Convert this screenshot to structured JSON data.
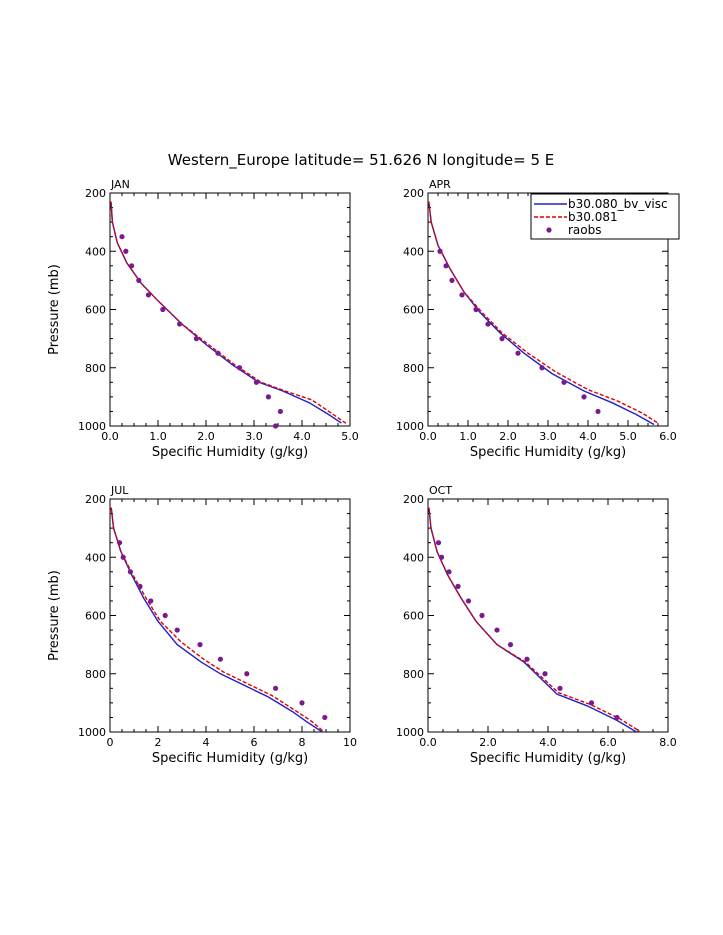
{
  "figure": {
    "title": "Western_Europe   latitude= 51.626 N longitude= 5 E"
  },
  "colors": {
    "model_a": "#2020c8",
    "model_b": "#e00000",
    "obs": "#7a1a8c"
  },
  "legend": {
    "placement": "top-right of APR panel",
    "entries": [
      {
        "name": "b30.080_bv_visc",
        "style": "solid-line"
      },
      {
        "name": "b30.081",
        "style": "dashed-line"
      },
      {
        "name": "raobs",
        "style": "dot"
      }
    ]
  },
  "chart_data": [
    {
      "type": "line",
      "panel_title": "JAN",
      "xlabel": "Specific Humidity (g/kg)",
      "ylabel": "Pressure (mb)",
      "xlim": [
        0,
        5
      ],
      "ylim": [
        1000,
        200
      ],
      "y_inverted": true,
      "xticks": [
        "0.0",
        "1.0",
        "2.0",
        "3.0",
        "4.0",
        "5.0"
      ],
      "yticks": [
        "200",
        "400",
        "600",
        "800",
        "1000"
      ],
      "series": [
        {
          "name": "b30.080_bv_visc",
          "style": "solid",
          "points": [
            [
              0.02,
              230
            ],
            [
              0.05,
              300
            ],
            [
              0.15,
              370
            ],
            [
              0.35,
              440
            ],
            [
              0.65,
              510
            ],
            [
              1.0,
              570
            ],
            [
              1.5,
              650
            ],
            [
              2.0,
              720
            ],
            [
              2.55,
              790
            ],
            [
              3.1,
              850
            ],
            [
              3.6,
              880
            ],
            [
              4.15,
              920
            ],
            [
              4.55,
              960
            ],
            [
              4.82,
              990
            ]
          ]
        },
        {
          "name": "b30.081",
          "style": "dashed",
          "points": [
            [
              0.02,
              230
            ],
            [
              0.05,
              300
            ],
            [
              0.15,
              370
            ],
            [
              0.35,
              440
            ],
            [
              0.65,
              510
            ],
            [
              1.0,
              570
            ],
            [
              1.5,
              650
            ],
            [
              2.05,
              720
            ],
            [
              2.6,
              790
            ],
            [
              3.15,
              850
            ],
            [
              3.65,
              880
            ],
            [
              4.2,
              910
            ],
            [
              4.65,
              960
            ],
            [
              4.95,
              995
            ]
          ]
        },
        {
          "name": "raobs",
          "style": "dot",
          "points": [
            [
              0.25,
              350
            ],
            [
              0.33,
              400
            ],
            [
              0.45,
              450
            ],
            [
              0.6,
              500
            ],
            [
              0.8,
              550
            ],
            [
              1.1,
              600
            ],
            [
              1.45,
              650
            ],
            [
              1.8,
              700
            ],
            [
              2.25,
              750
            ],
            [
              2.7,
              800
            ],
            [
              3.05,
              850
            ],
            [
              3.3,
              900
            ],
            [
              3.55,
              950
            ],
            [
              3.45,
              1000
            ]
          ]
        }
      ]
    },
    {
      "type": "line",
      "panel_title": "APR",
      "xlabel": "Specific Humidity (g/kg)",
      "ylabel": "",
      "xlim": [
        0,
        6
      ],
      "ylim": [
        1000,
        200
      ],
      "y_inverted": true,
      "xticks": [
        "0.0",
        "1.0",
        "2.0",
        "3.0",
        "4.0",
        "5.0",
        "6.0"
      ],
      "yticks": [
        "200",
        "400",
        "600",
        "800",
        "1000"
      ],
      "series": [
        {
          "name": "b30.080_bv_visc",
          "style": "solid",
          "points": [
            [
              0.02,
              230
            ],
            [
              0.08,
              300
            ],
            [
              0.25,
              380
            ],
            [
              0.55,
              460
            ],
            [
              0.9,
              540
            ],
            [
              1.3,
              610
            ],
            [
              1.8,
              680
            ],
            [
              2.4,
              750
            ],
            [
              3.1,
              820
            ],
            [
              3.9,
              880
            ],
            [
              4.6,
              920
            ],
            [
              5.2,
              960
            ],
            [
              5.65,
              995
            ]
          ]
        },
        {
          "name": "b30.081",
          "style": "dashed",
          "points": [
            [
              0.02,
              230
            ],
            [
              0.08,
              300
            ],
            [
              0.25,
              380
            ],
            [
              0.55,
              460
            ],
            [
              0.9,
              540
            ],
            [
              1.35,
              610
            ],
            [
              1.85,
              680
            ],
            [
              2.5,
              750
            ],
            [
              3.2,
              815
            ],
            [
              4.0,
              875
            ],
            [
              4.75,
              915
            ],
            [
              5.35,
              955
            ],
            [
              5.75,
              990
            ]
          ]
        },
        {
          "name": "raobs",
          "style": "dot",
          "points": [
            [
              0.3,
              400
            ],
            [
              0.45,
              450
            ],
            [
              0.6,
              500
            ],
            [
              0.85,
              550
            ],
            [
              1.2,
              600
            ],
            [
              1.5,
              650
            ],
            [
              1.85,
              700
            ],
            [
              2.25,
              750
            ],
            [
              2.85,
              800
            ],
            [
              3.4,
              850
            ],
            [
              3.9,
              900
            ],
            [
              4.25,
              950
            ]
          ]
        }
      ]
    },
    {
      "type": "line",
      "panel_title": "JUL",
      "xlabel": "Specific Humidity (g/kg)",
      "ylabel": "Pressure (mb)",
      "xlim": [
        0,
        10
      ],
      "ylim": [
        1000,
        200
      ],
      "y_inverted": true,
      "xticks": [
        "0",
        "2",
        "4",
        "6",
        "8",
        "10"
      ],
      "yticks": [
        "200",
        "400",
        "600",
        "800",
        "1000"
      ],
      "series": [
        {
          "name": "b30.080_bv_visc",
          "style": "solid",
          "points": [
            [
              0.05,
              230
            ],
            [
              0.15,
              300
            ],
            [
              0.45,
              380
            ],
            [
              0.9,
              460
            ],
            [
              1.4,
              540
            ],
            [
              2.0,
              620
            ],
            [
              2.8,
              700
            ],
            [
              3.8,
              760
            ],
            [
              4.6,
              800
            ],
            [
              5.6,
              840
            ],
            [
              6.6,
              880
            ],
            [
              7.6,
              930
            ],
            [
              8.2,
              965
            ],
            [
              8.85,
              1000
            ]
          ]
        },
        {
          "name": "b30.081",
          "style": "dashed",
          "points": [
            [
              0.05,
              230
            ],
            [
              0.15,
              300
            ],
            [
              0.45,
              380
            ],
            [
              0.95,
              460
            ],
            [
              1.5,
              540
            ],
            [
              2.1,
              620
            ],
            [
              2.95,
              690
            ],
            [
              3.9,
              750
            ],
            [
              4.75,
              795
            ],
            [
              5.75,
              835
            ],
            [
              6.75,
              875
            ],
            [
              7.7,
              925
            ],
            [
              8.35,
              960
            ],
            [
              8.9,
              998
            ]
          ]
        },
        {
          "name": "raobs",
          "style": "dot",
          "points": [
            [
              0.4,
              350
            ],
            [
              0.55,
              400
            ],
            [
              0.85,
              450
            ],
            [
              1.25,
              500
            ],
            [
              1.7,
              550
            ],
            [
              2.3,
              600
            ],
            [
              2.8,
              650
            ],
            [
              3.75,
              700
            ],
            [
              4.6,
              750
            ],
            [
              5.7,
              800
            ],
            [
              6.9,
              850
            ],
            [
              8.0,
              900
            ],
            [
              8.95,
              950
            ]
          ]
        }
      ]
    },
    {
      "type": "line",
      "panel_title": "OCT",
      "xlabel": "Specific Humidity (g/kg)",
      "ylabel": "",
      "xlim": [
        0,
        8
      ],
      "ylim": [
        1000,
        200
      ],
      "y_inverted": true,
      "xticks": [
        "0.0",
        "2.0",
        "4.0",
        "6.0",
        "8.0"
      ],
      "yticks": [
        "200",
        "400",
        "600",
        "800",
        "1000"
      ],
      "series": [
        {
          "name": "b30.080_bv_visc",
          "style": "solid",
          "points": [
            [
              0.03,
              230
            ],
            [
              0.1,
              300
            ],
            [
              0.3,
              380
            ],
            [
              0.65,
              460
            ],
            [
              1.1,
              540
            ],
            [
              1.6,
              620
            ],
            [
              2.3,
              700
            ],
            [
              3.2,
              760
            ],
            [
              4.3,
              870
            ],
            [
              5.3,
              910
            ],
            [
              6.3,
              960
            ],
            [
              6.95,
              1000
            ]
          ]
        },
        {
          "name": "b30.081",
          "style": "dashed",
          "points": [
            [
              0.03,
              230
            ],
            [
              0.1,
              300
            ],
            [
              0.3,
              380
            ],
            [
              0.65,
              460
            ],
            [
              1.1,
              540
            ],
            [
              1.6,
              620
            ],
            [
              2.3,
              700
            ],
            [
              3.25,
              760
            ],
            [
              4.35,
              865
            ],
            [
              5.4,
              905
            ],
            [
              6.4,
              955
            ],
            [
              7.05,
              997
            ]
          ]
        },
        {
          "name": "raobs",
          "style": "dot",
          "points": [
            [
              0.35,
              350
            ],
            [
              0.45,
              400
            ],
            [
              0.7,
              450
            ],
            [
              1.0,
              500
            ],
            [
              1.35,
              550
            ],
            [
              1.8,
              600
            ],
            [
              2.3,
              650
            ],
            [
              2.75,
              700
            ],
            [
              3.3,
              750
            ],
            [
              3.9,
              800
            ],
            [
              4.4,
              850
            ],
            [
              5.45,
              900
            ],
            [
              6.3,
              950
            ]
          ]
        }
      ]
    }
  ]
}
